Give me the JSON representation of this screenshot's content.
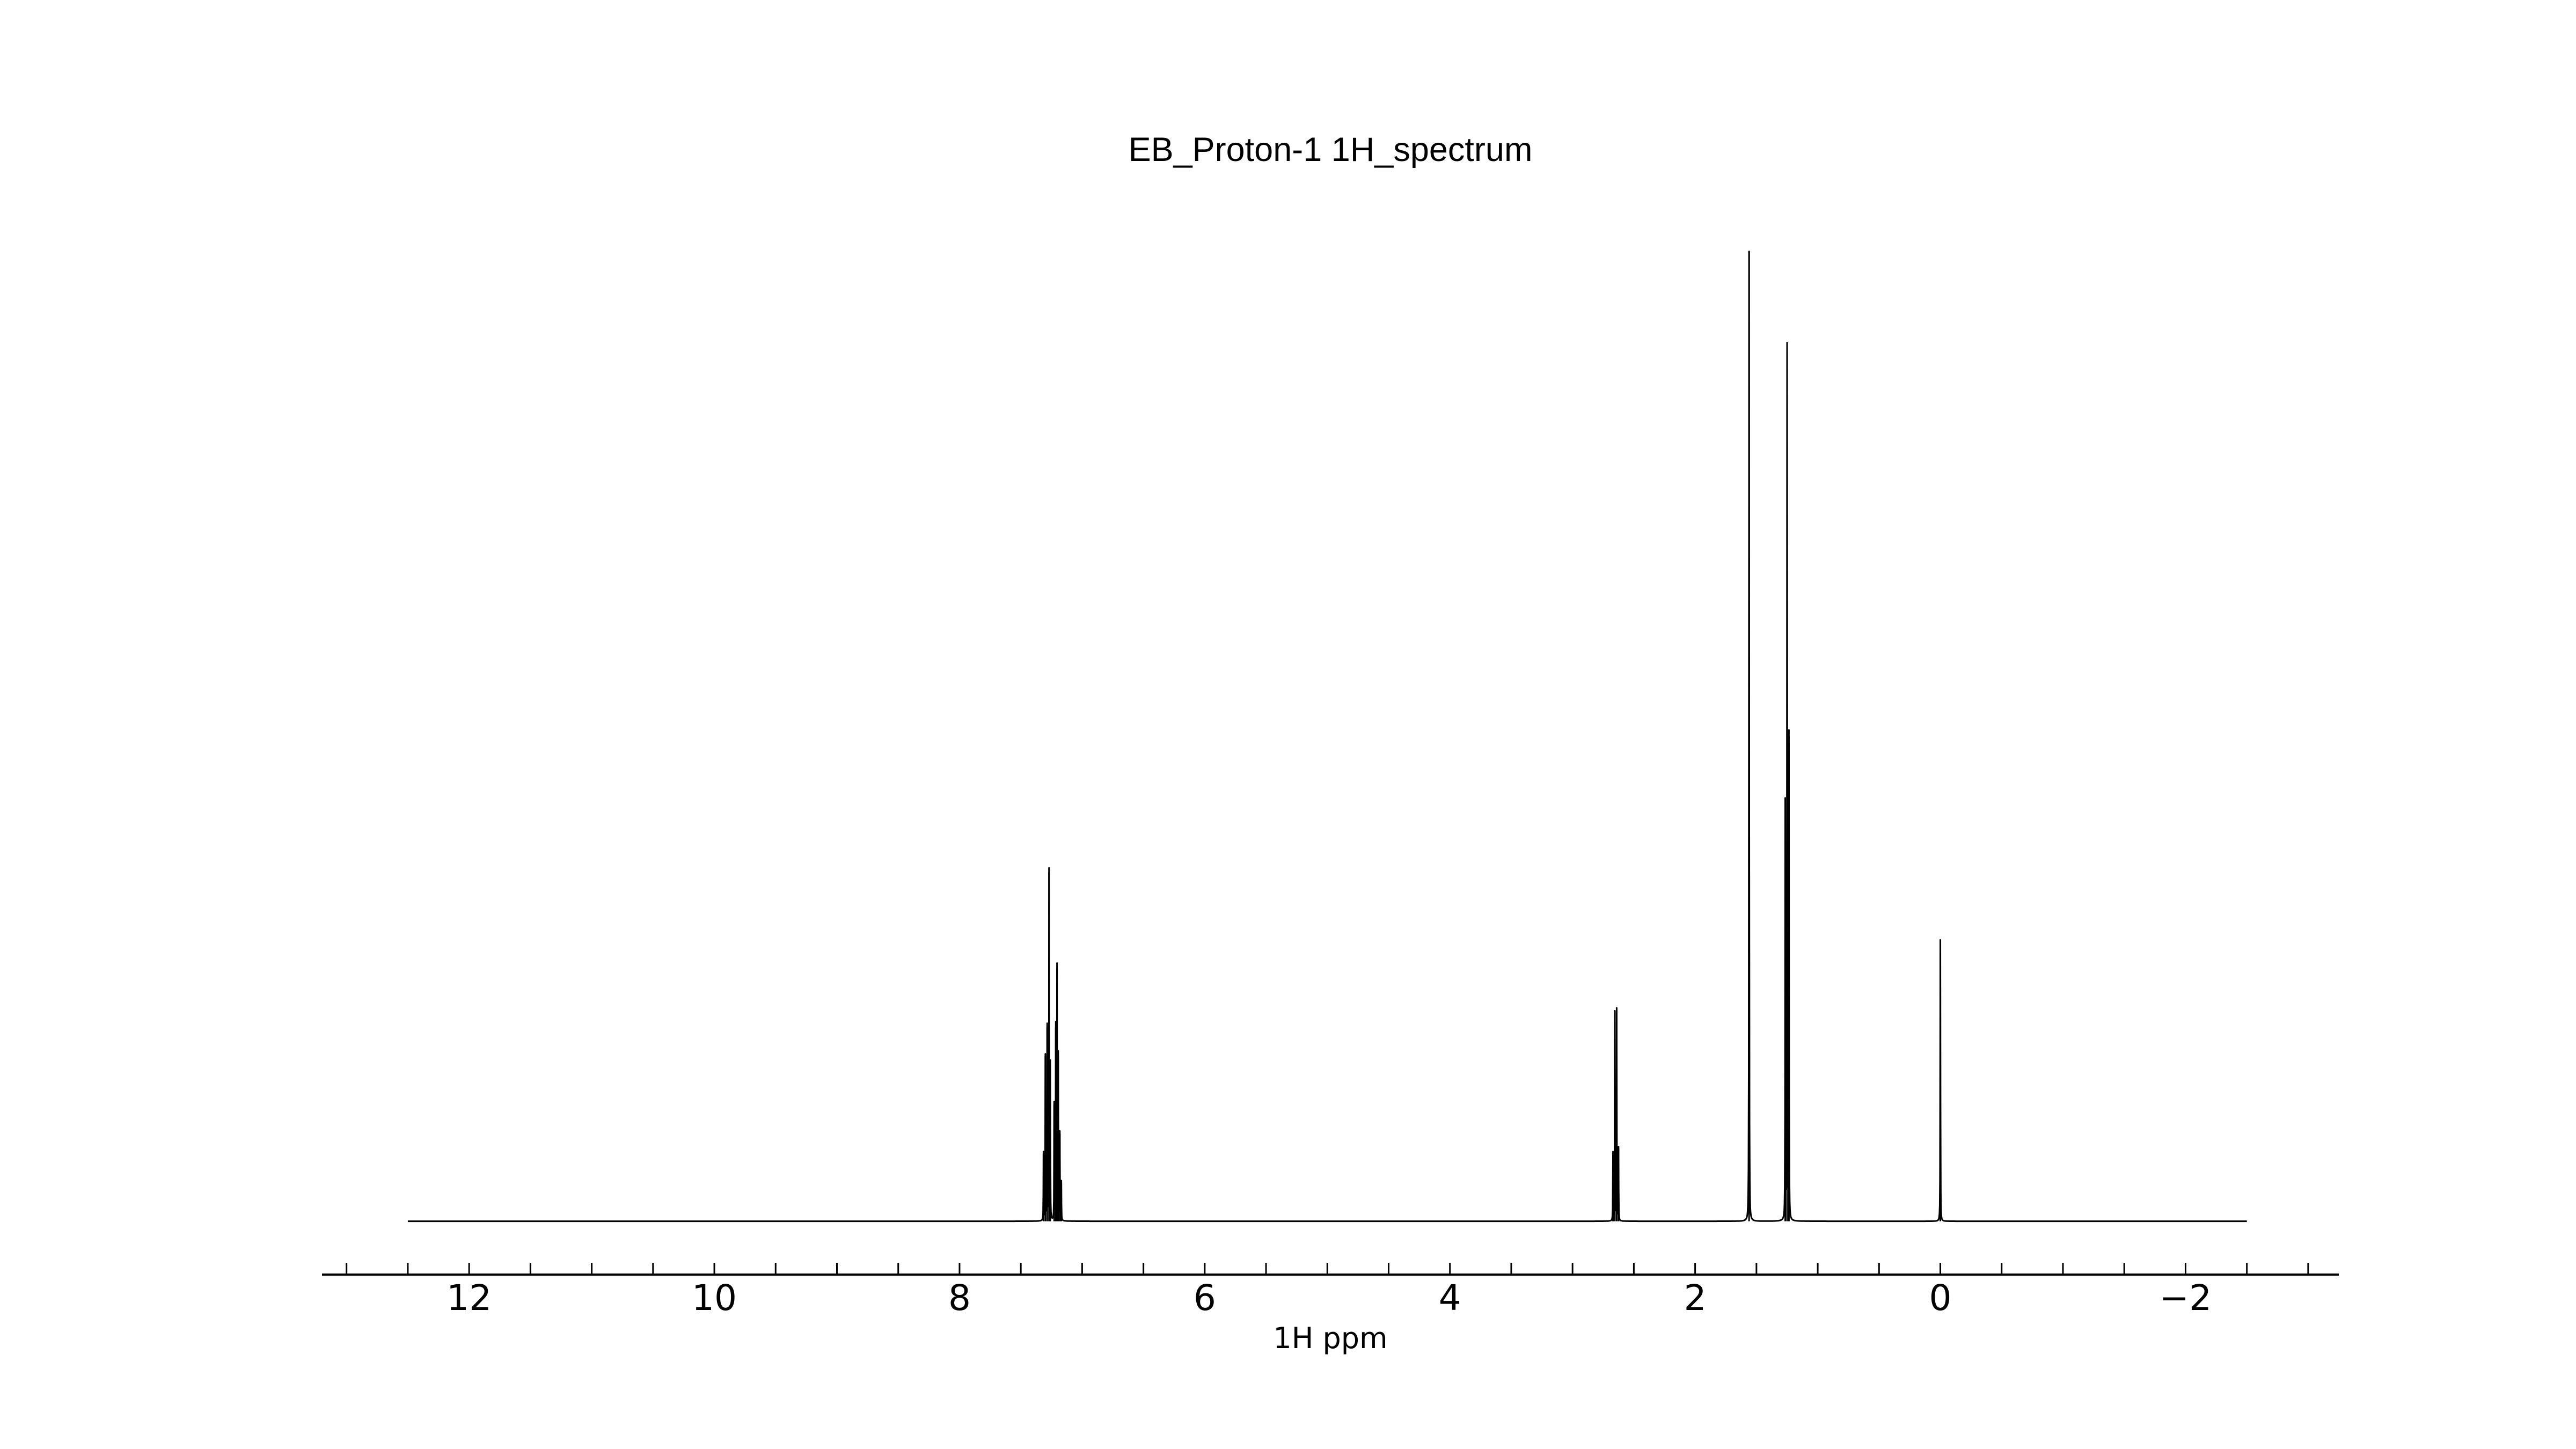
{
  "chart_data": {
    "type": "line",
    "title": "EB_Proton-1  1H_spectrum",
    "xlabel": "1H ppm",
    "ylabel": "",
    "x_reversed": true,
    "xlim": [
      13.2,
      -3.25
    ],
    "ylim": [
      -0.055,
      1.06
    ],
    "major_ticks": [
      12,
      10,
      8,
      6,
      4,
      2,
      0,
      -2
    ],
    "tick_labels": [
      "12",
      "10",
      "8",
      "6",
      "4",
      "2",
      "0",
      "−2"
    ],
    "minor_tick_step": 0.5,
    "spectrum_range": [
      12.5,
      -2.5
    ],
    "baseline": 0.0,
    "peaks": [
      {
        "ppm": 7.315,
        "height": 0.07
      },
      {
        "ppm": 7.3,
        "height": 0.17
      },
      {
        "ppm": 7.285,
        "height": 0.2
      },
      {
        "ppm": 7.27,
        "height": 0.36
      },
      {
        "ppm": 7.26,
        "height": 0.16
      },
      {
        "ppm": 7.228,
        "height": 0.12
      },
      {
        "ppm": 7.215,
        "height": 0.2
      },
      {
        "ppm": 7.205,
        "height": 0.26
      },
      {
        "ppm": 7.195,
        "height": 0.17
      },
      {
        "ppm": 7.182,
        "height": 0.09
      },
      {
        "ppm": 7.17,
        "height": 0.04
      },
      {
        "ppm": 2.67,
        "height": 0.07
      },
      {
        "ppm": 2.655,
        "height": 0.215
      },
      {
        "ppm": 2.64,
        "height": 0.218
      },
      {
        "ppm": 2.625,
        "height": 0.075
      },
      {
        "ppm": 1.56,
        "height": 1.0
      },
      {
        "ppm": 1.265,
        "height": 0.43
      },
      {
        "ppm": 1.25,
        "height": 0.9
      },
      {
        "ppm": 1.235,
        "height": 0.5
      },
      {
        "ppm": 0.0,
        "height": 0.29
      }
    ],
    "grid": false,
    "line_color": "#000000"
  }
}
